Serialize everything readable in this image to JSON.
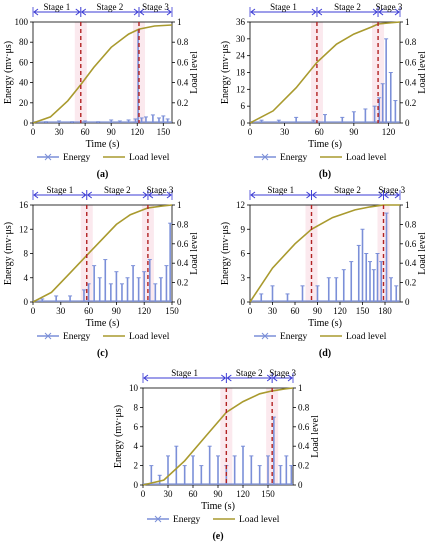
{
  "chart_data": [
    {
      "type": "line",
      "panel_label": "(a)",
      "xlabel": "Time (s)",
      "ylabel": "Energy (mv·μs)",
      "y2label": "Load level",
      "xlim": [
        0,
        160
      ],
      "ylim": [
        0,
        100
      ],
      "y2lim": [
        0,
        1
      ],
      "xticks": [
        "0",
        "30",
        "60",
        "90",
        "120",
        "150"
      ],
      "yticks": [
        "0",
        "20",
        "40",
        "60",
        "80",
        "100"
      ],
      "y2ticks": [
        "0",
        "0.2",
        "0.4",
        "0.6",
        "0.8",
        "1"
      ],
      "stages": [
        {
          "label": "Stage 1",
          "start": 0,
          "end": 55
        },
        {
          "label": "Stage 2",
          "start": 55,
          "end": 122
        },
        {
          "label": "Stage 3",
          "start": 122,
          "end": 160
        }
      ],
      "boundaries": [
        55,
        122
      ],
      "legend": [
        "Energy",
        "Load level"
      ],
      "series": [
        {
          "name": "Energy",
          "type": "bar",
          "color": "#7b8fd8",
          "axis": "left",
          "x": [
            15,
            30,
            45,
            60,
            75,
            90,
            100,
            110,
            118,
            121,
            125,
            130,
            138,
            145,
            150,
            155
          ],
          "y": [
            1,
            2,
            1,
            2,
            1,
            3,
            2,
            3,
            4,
            92,
            5,
            6,
            8,
            5,
            7,
            4
          ]
        },
        {
          "name": "Load level",
          "type": "line",
          "color": "#a99a2e",
          "axis": "right",
          "x": [
            0,
            20,
            40,
            55,
            70,
            90,
            110,
            122,
            140,
            160
          ],
          "y": [
            0,
            0.06,
            0.22,
            0.38,
            0.55,
            0.75,
            0.88,
            0.93,
            0.96,
            0.97
          ]
        }
      ]
    },
    {
      "type": "line",
      "panel_label": "(b)",
      "xlabel": "Time (s)",
      "ylabel": "Energy (mv·μs)",
      "y2label": "Load level",
      "xlim": [
        0,
        130
      ],
      "ylim": [
        0,
        36
      ],
      "y2lim": [
        0,
        1
      ],
      "xticks": [
        "0",
        "30",
        "60",
        "90",
        "120"
      ],
      "yticks": [
        "0",
        "6",
        "12",
        "18",
        "24",
        "30",
        "36"
      ],
      "y2ticks": [
        "0",
        "0.2",
        "0.4",
        "0.6",
        "0.8",
        "1"
      ],
      "stages": [
        {
          "label": "Stage 1",
          "start": 0,
          "end": 58
        },
        {
          "label": "Stage 2",
          "start": 58,
          "end": 111
        },
        {
          "label": "Stage 3",
          "start": 111,
          "end": 130
        }
      ],
      "boundaries": [
        58,
        111
      ],
      "legend": [
        "Energy",
        "Load level"
      ],
      "series": [
        {
          "name": "Energy",
          "type": "bar",
          "color": "#7b8fd8",
          "axis": "left",
          "x": [
            10,
            25,
            40,
            55,
            65,
            80,
            90,
            100,
            108,
            112,
            115,
            118,
            122,
            126
          ],
          "y": [
            1,
            1,
            2,
            1,
            3,
            2,
            4,
            5,
            6,
            9,
            14,
            30,
            18,
            8
          ]
        },
        {
          "name": "Load level",
          "type": "line",
          "color": "#a99a2e",
          "axis": "right",
          "x": [
            0,
            20,
            40,
            58,
            75,
            90,
            105,
            111,
            120,
            130
          ],
          "y": [
            0,
            0.12,
            0.35,
            0.6,
            0.78,
            0.88,
            0.95,
            0.98,
            0.99,
            1.0
          ]
        }
      ]
    },
    {
      "type": "line",
      "panel_label": "(c)",
      "xlabel": "Time (s)",
      "ylabel": "Energy (mv·μs)",
      "y2label": "Load level",
      "xlim": [
        0,
        150
      ],
      "ylim": [
        0,
        16
      ],
      "y2lim": [
        0,
        1
      ],
      "xticks": [
        "0",
        "30",
        "60",
        "90",
        "120",
        "150"
      ],
      "yticks": [
        "0",
        "4",
        "8",
        "12",
        "16"
      ],
      "y2ticks": [
        "0",
        "0.2",
        "0.4",
        "0.6",
        "0.8",
        "1"
      ],
      "stages": [
        {
          "label": "Stage 1",
          "start": 0,
          "end": 58
        },
        {
          "label": "Stage 2",
          "start": 58,
          "end": 124
        },
        {
          "label": "Stage 3",
          "start": 124,
          "end": 150
        }
      ],
      "boundaries": [
        58,
        124
      ],
      "legend": [
        "Energy",
        "Load level"
      ],
      "series": [
        {
          "name": "Energy",
          "type": "bar",
          "color": "#7b8fd8",
          "axis": "left",
          "x": [
            10,
            25,
            40,
            55,
            60,
            66,
            72,
            78,
            84,
            90,
            96,
            102,
            108,
            114,
            120,
            126,
            132,
            138,
            144,
            148
          ],
          "y": [
            0.5,
            1,
            1,
            2,
            3,
            6,
            4,
            7,
            3,
            5,
            3,
            4,
            6,
            4,
            5,
            7,
            3,
            4,
            6,
            13
          ]
        },
        {
          "name": "Load level",
          "type": "line",
          "color": "#a99a2e",
          "axis": "right",
          "x": [
            0,
            20,
            40,
            58,
            75,
            90,
            105,
            124,
            140,
            150
          ],
          "y": [
            0,
            0.1,
            0.3,
            0.48,
            0.65,
            0.8,
            0.9,
            0.97,
            0.99,
            1.0
          ]
        }
      ]
    },
    {
      "type": "line",
      "panel_label": "(d)",
      "xlabel": "Time (s)",
      "ylabel": "Energy (mv·μs)",
      "y2label": "Load level",
      "xlim": [
        0,
        200
      ],
      "ylim": [
        0,
        12
      ],
      "y2lim": [
        0,
        1
      ],
      "xticks": [
        "0",
        "30",
        "60",
        "90",
        "120",
        "150",
        "180"
      ],
      "yticks": [
        "0",
        "3",
        "6",
        "9",
        "12"
      ],
      "y2ticks": [
        "0",
        "0.2",
        "0.4",
        "0.6",
        "0.8",
        "1"
      ],
      "stages": [
        {
          "label": "Stage 1",
          "start": 0,
          "end": 82
        },
        {
          "label": "Stage 2",
          "start": 82,
          "end": 178
        },
        {
          "label": "Stage 3",
          "start": 178,
          "end": 200
        }
      ],
      "boundaries": [
        82,
        178
      ],
      "legend": [
        "Energy",
        "Load level"
      ],
      "series": [
        {
          "name": "Energy",
          "type": "bar",
          "color": "#7b8fd8",
          "axis": "left",
          "x": [
            15,
            30,
            50,
            70,
            90,
            105,
            115,
            125,
            135,
            145,
            150,
            155,
            160,
            165,
            170,
            175,
            182,
            188,
            195
          ],
          "y": [
            1,
            2,
            1,
            2,
            2,
            3,
            3,
            4,
            5,
            7,
            9,
            6,
            5,
            4,
            6,
            5,
            11,
            3,
            2
          ]
        },
        {
          "name": "Load level",
          "type": "line",
          "color": "#a99a2e",
          "axis": "right",
          "x": [
            0,
            30,
            60,
            82,
            110,
            140,
            160,
            178,
            190,
            200
          ],
          "y": [
            0,
            0.35,
            0.6,
            0.75,
            0.87,
            0.95,
            0.98,
            1.0,
            1.0,
            1.0
          ]
        }
      ]
    },
    {
      "type": "line",
      "panel_label": "(e)",
      "xlabel": "Time (s)",
      "ylabel": "Energy (mv·μs)",
      "y2label": "Load level",
      "xlim": [
        0,
        180
      ],
      "ylim": [
        0,
        10
      ],
      "y2lim": [
        0,
        1
      ],
      "xticks": [
        "0",
        "30",
        "60",
        "90",
        "120",
        "150"
      ],
      "yticks": [
        "0",
        "2",
        "4",
        "6",
        "8",
        "10"
      ],
      "y2ticks": [
        "0",
        "0.2",
        "0.4",
        "0.6",
        "0.8",
        "1"
      ],
      "stages": [
        {
          "label": "Stage 1",
          "start": 0,
          "end": 100
        },
        {
          "label": "Stage 2",
          "start": 100,
          "end": 155
        },
        {
          "label": "Stage 3",
          "start": 155,
          "end": 180
        }
      ],
      "boundaries": [
        100,
        155
      ],
      "legend": [
        "Energy",
        "Load level"
      ],
      "series": [
        {
          "name": "Energy",
          "type": "bar",
          "color": "#7b8fd8",
          "axis": "left",
          "x": [
            10,
            20,
            30,
            40,
            50,
            60,
            70,
            80,
            90,
            100,
            110,
            120,
            130,
            140,
            150,
            157,
            165,
            172,
            178
          ],
          "y": [
            2,
            1,
            3,
            4,
            2,
            3,
            2,
            4,
            3,
            2,
            3,
            4,
            3,
            2,
            3,
            7,
            2,
            3,
            2
          ]
        },
        {
          "name": "Load level",
          "type": "line",
          "color": "#a99a2e",
          "axis": "right",
          "x": [
            0,
            25,
            50,
            75,
            100,
            120,
            140,
            155,
            170,
            180
          ],
          "y": [
            0,
            0.05,
            0.25,
            0.5,
            0.75,
            0.86,
            0.94,
            0.97,
            0.99,
            1.0
          ]
        }
      ]
    }
  ]
}
